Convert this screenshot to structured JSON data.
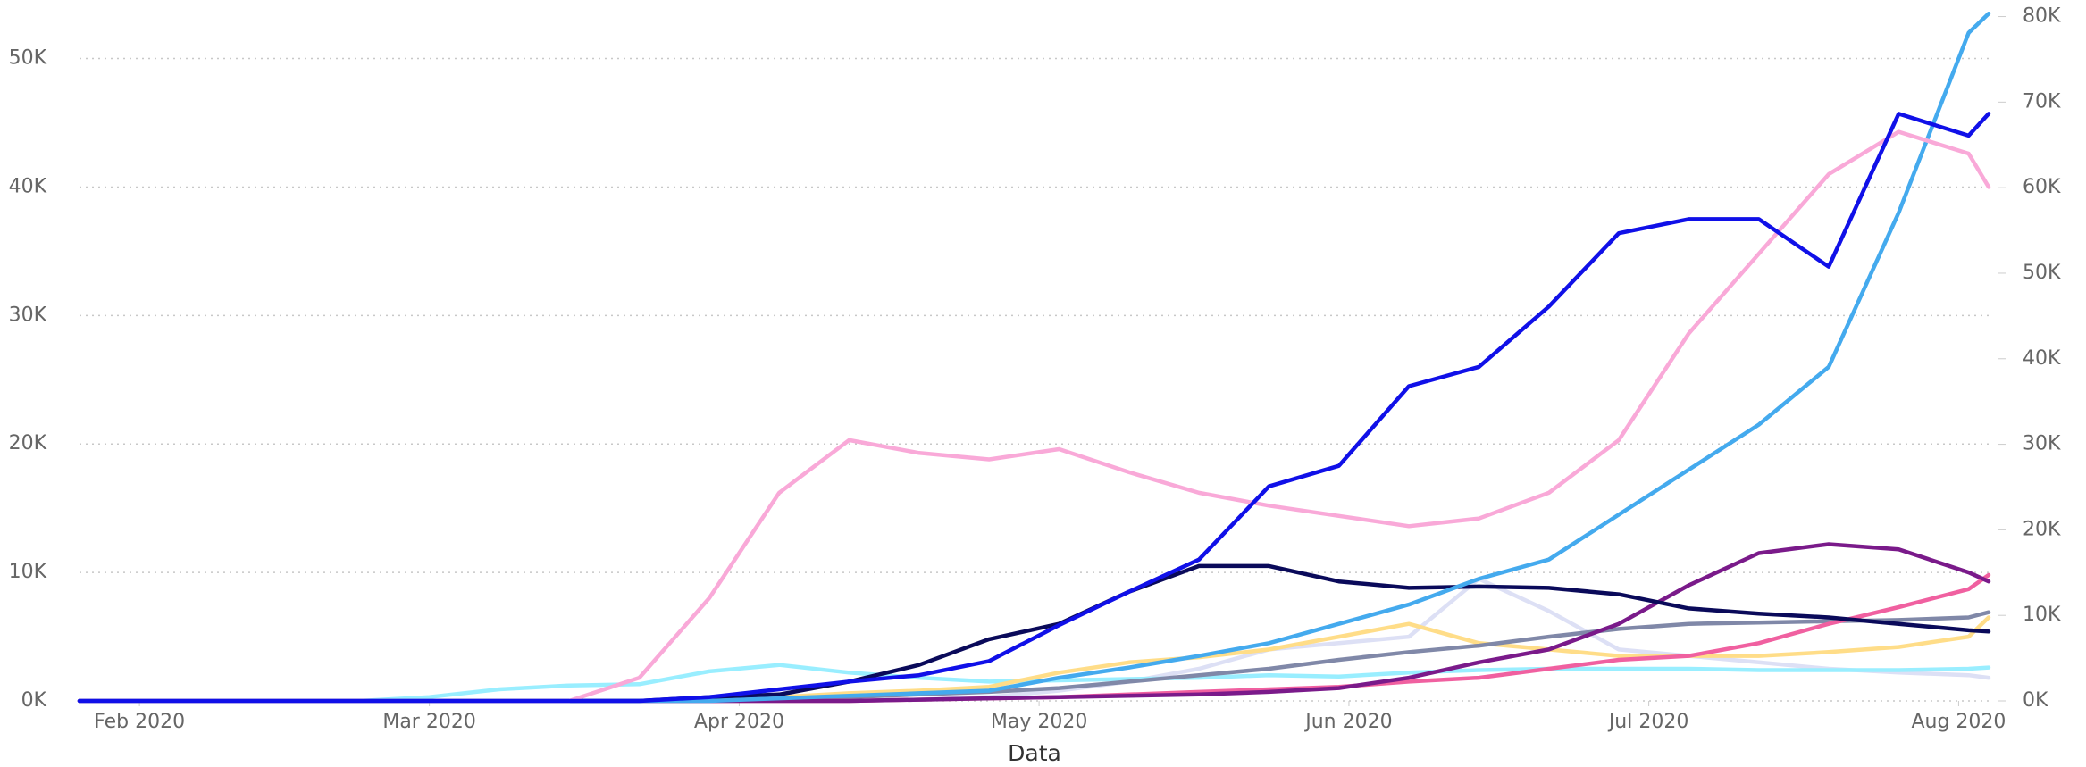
{
  "chart_data": {
    "type": "line",
    "x_label": "Data",
    "x": [
      "2020-01-26",
      "2020-02-02",
      "2020-02-09",
      "2020-02-16",
      "2020-02-23",
      "2020-03-01",
      "2020-03-08",
      "2020-03-15",
      "2020-03-22",
      "2020-03-29",
      "2020-04-05",
      "2020-04-12",
      "2020-04-19",
      "2020-04-26",
      "2020-05-03",
      "2020-05-10",
      "2020-05-17",
      "2020-05-24",
      "2020-05-31",
      "2020-06-07",
      "2020-06-14",
      "2020-06-21",
      "2020-06-28",
      "2020-07-05",
      "2020-07-12",
      "2020-07-19",
      "2020-07-26",
      "2020-08-02",
      "2020-08-04"
    ],
    "xlim": [
      "2020-01-26",
      "2020-08-04"
    ],
    "xticks": [
      {
        "value": "2020-02-01",
        "label": "Feb 2020"
      },
      {
        "value": "2020-03-01",
        "label": "Mar 2020"
      },
      {
        "value": "2020-04-01",
        "label": "Apr 2020"
      },
      {
        "value": "2020-05-01",
        "label": "May 2020"
      },
      {
        "value": "2020-06-01",
        "label": "Jun 2020"
      },
      {
        "value": "2020-07-01",
        "label": "Jul 2020"
      },
      {
        "value": "2020-08-01",
        "label": "Aug 2020"
      }
    ],
    "ylim": [
      0,
      54000
    ],
    "yticks": [
      {
        "value": 0,
        "label": "0K"
      },
      {
        "value": 10000,
        "label": "10K"
      },
      {
        "value": 20000,
        "label": "20K"
      },
      {
        "value": 30000,
        "label": "30K"
      },
      {
        "value": 40000,
        "label": "40K"
      },
      {
        "value": 50000,
        "label": "50K"
      }
    ],
    "y2lim": [
      0,
      81100
    ],
    "y2ticks": [
      {
        "value": 0,
        "label": "0K"
      },
      {
        "value": 10000,
        "label": "10K"
      },
      {
        "value": 20000,
        "label": "20K"
      },
      {
        "value": 30000,
        "label": "30K"
      },
      {
        "value": 40000,
        "label": "40K"
      },
      {
        "value": 50000,
        "label": "50K"
      },
      {
        "value": 60000,
        "label": "60K"
      },
      {
        "value": 70000,
        "label": "70K"
      },
      {
        "value": 80000,
        "label": "80K"
      }
    ],
    "grid": true,
    "series": [
      {
        "color": "#dde0f5",
        "values": [
          0,
          0,
          0,
          0,
          0,
          0,
          0,
          0,
          0,
          0,
          0,
          0,
          100,
          300,
          800,
          1500,
          2500,
          4000,
          4500,
          5000,
          9500,
          7000,
          4000,
          3500,
          3000,
          2500,
          2200,
          2000,
          1800
        ]
      },
      {
        "color": "#99eeff",
        "values": [
          0,
          0,
          0,
          0,
          0,
          300,
          900,
          1200,
          1300,
          2300,
          2800,
          2200,
          1800,
          1500,
          1600,
          1700,
          1800,
          2000,
          1900,
          2200,
          2400,
          2500,
          2500,
          2500,
          2400,
          2400,
          2400,
          2500,
          2600
        ]
      },
      {
        "color": "#ffdd88",
        "values": [
          0,
          0,
          0,
          0,
          0,
          0,
          0,
          0,
          0,
          100,
          300,
          600,
          800,
          1100,
          2200,
          3000,
          3400,
          4000,
          5000,
          6000,
          4500,
          4000,
          3500,
          3500,
          3500,
          3800,
          4200,
          5000,
          6500
        ]
      },
      {
        "color": "#8088a8",
        "values": [
          0,
          0,
          0,
          0,
          0,
          0,
          0,
          0,
          0,
          0,
          100,
          300,
          500,
          700,
          1000,
          1500,
          2000,
          2500,
          3200,
          3800,
          4300,
          5000,
          5600,
          6000,
          6100,
          6200,
          6300,
          6500,
          6900
        ]
      },
      {
        "color": "#f060a0",
        "values": [
          0,
          0,
          0,
          0,
          0,
          0,
          0,
          0,
          0,
          0,
          0,
          0,
          100,
          200,
          300,
          500,
          700,
          900,
          1100,
          1500,
          1800,
          2500,
          3200,
          3500,
          4500,
          6000,
          7300,
          8700,
          9800
        ]
      },
      {
        "color": "#7a1a8a",
        "values": [
          0,
          0,
          0,
          0,
          0,
          0,
          0,
          0,
          0,
          0,
          0,
          0,
          100,
          200,
          300,
          400,
          500,
          700,
          1000,
          1800,
          3000,
          4000,
          6000,
          9000,
          11500,
          12200,
          11800,
          10000,
          9300
        ]
      },
      {
        "color": "#0a0a5a",
        "values": [
          0,
          0,
          0,
          0,
          0,
          0,
          0,
          0,
          0,
          300,
          500,
          1500,
          2800,
          4800,
          6000,
          8500,
          10500,
          10500,
          9300,
          8800,
          8900,
          8800,
          8300,
          7200,
          6800,
          6500,
          6000,
          5500,
          5400
        ]
      },
      {
        "color": "#44aaee",
        "values": [
          0,
          0,
          0,
          0,
          0,
          0,
          0,
          0,
          0,
          0,
          200,
          400,
          600,
          800,
          1800,
          2600,
          3500,
          4500,
          6000,
          7500,
          9500,
          11000,
          14500,
          18000,
          21500,
          26000,
          38000,
          52000,
          53500
        ]
      },
      {
        "color": "#f9a9d8",
        "values": [
          0,
          0,
          0,
          0,
          0,
          0,
          0,
          0,
          1800,
          8000,
          16200,
          20300,
          19300,
          18800,
          19600,
          17800,
          16200,
          15200,
          14400,
          13600,
          14200,
          16200,
          20300,
          28600,
          34800,
          41000,
          44300,
          42600,
          40000
        ]
      },
      {
        "color": "#1010e8",
        "values": [
          0,
          0,
          0,
          0,
          0,
          0,
          0,
          0,
          0,
          300,
          900,
          1500,
          2000,
          3100,
          5900,
          8500,
          11000,
          16700,
          18300,
          24500,
          26000,
          30700,
          36400,
          37500,
          37500,
          33800,
          45700,
          44000,
          45700
        ]
      }
    ]
  }
}
